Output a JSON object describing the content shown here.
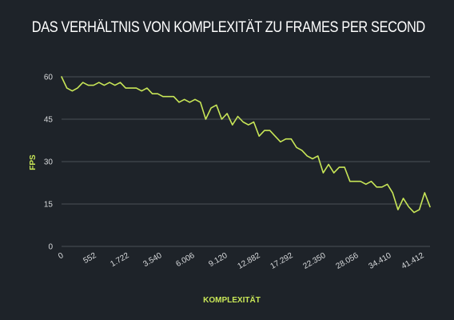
{
  "colors": {
    "background": "#1e2329",
    "line": "#c8e657",
    "grid": "#4a5058",
    "text": "#d8dadc",
    "title": "#ffffff"
  },
  "chart_data": {
    "type": "line",
    "title": "DAS VERHÄLTNIS VON KOMPLEXITÄT ZU FRAMES PER SECOND",
    "xlabel": "KOMPLEXITÄT",
    "ylabel": "FPS",
    "ylim": [
      0,
      60
    ],
    "yticks": [
      "0",
      "15",
      "30",
      "45",
      "60"
    ],
    "ytick_values": [
      0,
      15,
      30,
      45,
      60
    ],
    "xtick_labels": [
      "0",
      "552",
      "1.722",
      "3.540",
      "6.006",
      "9.120",
      "12.882",
      "17.292",
      "22.350",
      "28.056",
      "34.410",
      "41.412"
    ],
    "grid": true,
    "legend": "none",
    "series": [
      {
        "values": [
          60,
          56,
          55,
          56,
          58,
          57,
          57,
          58,
          57,
          58,
          57,
          58,
          56,
          56,
          56,
          55,
          56,
          54,
          54,
          53,
          53,
          53,
          51,
          52,
          51,
          52,
          51,
          45,
          49,
          50,
          45,
          47,
          43,
          46,
          44,
          43,
          44,
          39,
          41,
          41,
          39,
          37,
          38,
          38,
          35,
          34,
          32,
          31,
          32,
          26,
          29,
          26,
          28,
          28,
          23,
          23,
          23,
          22,
          23,
          21,
          21,
          22,
          19,
          13,
          17,
          14,
          12,
          13,
          19,
          14
        ]
      }
    ]
  }
}
